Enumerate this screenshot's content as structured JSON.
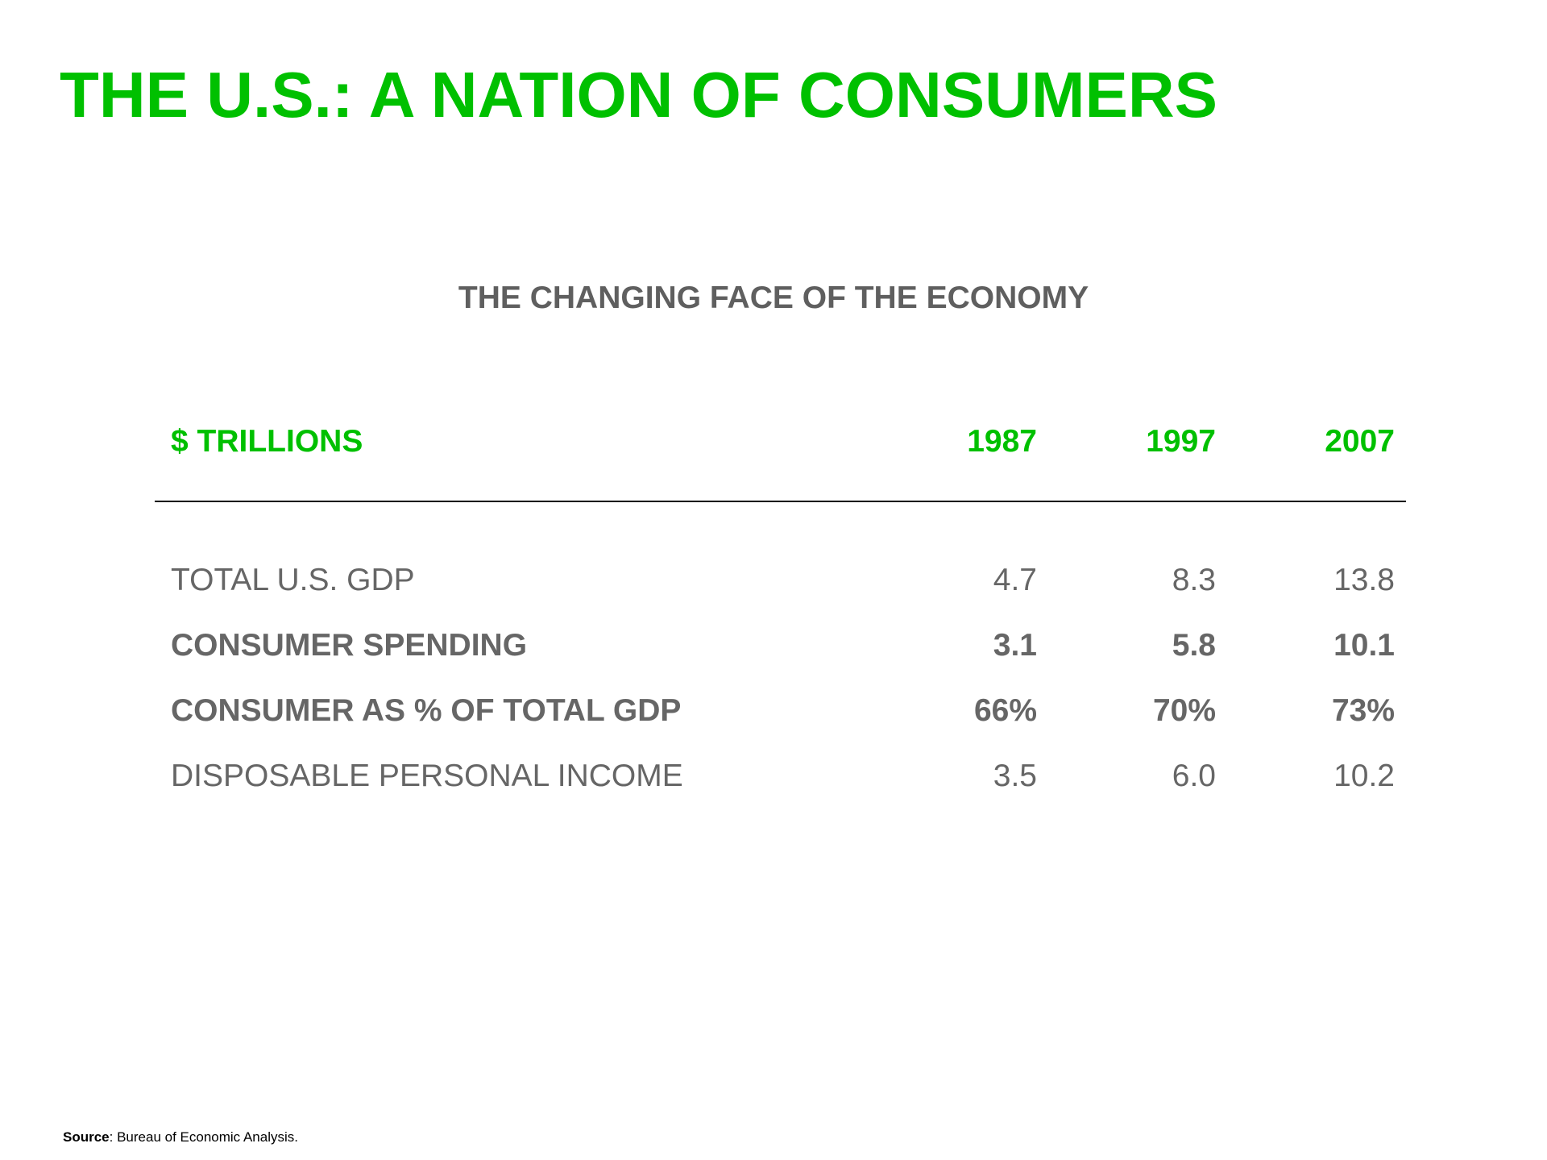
{
  "title": "THE U.S.: A NATION OF CONSUMERS",
  "subtitle": "THE CHANGING FACE OF THE ECONOMY",
  "table": {
    "unit_label": "$ TRILLIONS",
    "years": [
      "1987",
      "1997",
      "2007"
    ],
    "rows": [
      {
        "label": "TOTAL U.S. GDP",
        "values": [
          "4.7",
          "8.3",
          "13.8"
        ],
        "bold": false
      },
      {
        "label": "CONSUMER SPENDING",
        "values": [
          "3.1",
          "5.8",
          "10.1"
        ],
        "bold": true
      },
      {
        "label": "CONSUMER AS % OF TOTAL GDP",
        "values": [
          "66%",
          "70%",
          "73%"
        ],
        "bold": true
      },
      {
        "label": "DISPOSABLE PERSONAL INCOME",
        "values": [
          "3.5",
          "6.0",
          "10.2"
        ],
        "bold": false
      }
    ]
  },
  "source": {
    "label": "Source",
    "text": ": Bureau of Economic Analysis."
  },
  "colors": {
    "accent": "#00c000",
    "body_text": "#666666",
    "rule": "#000000"
  }
}
